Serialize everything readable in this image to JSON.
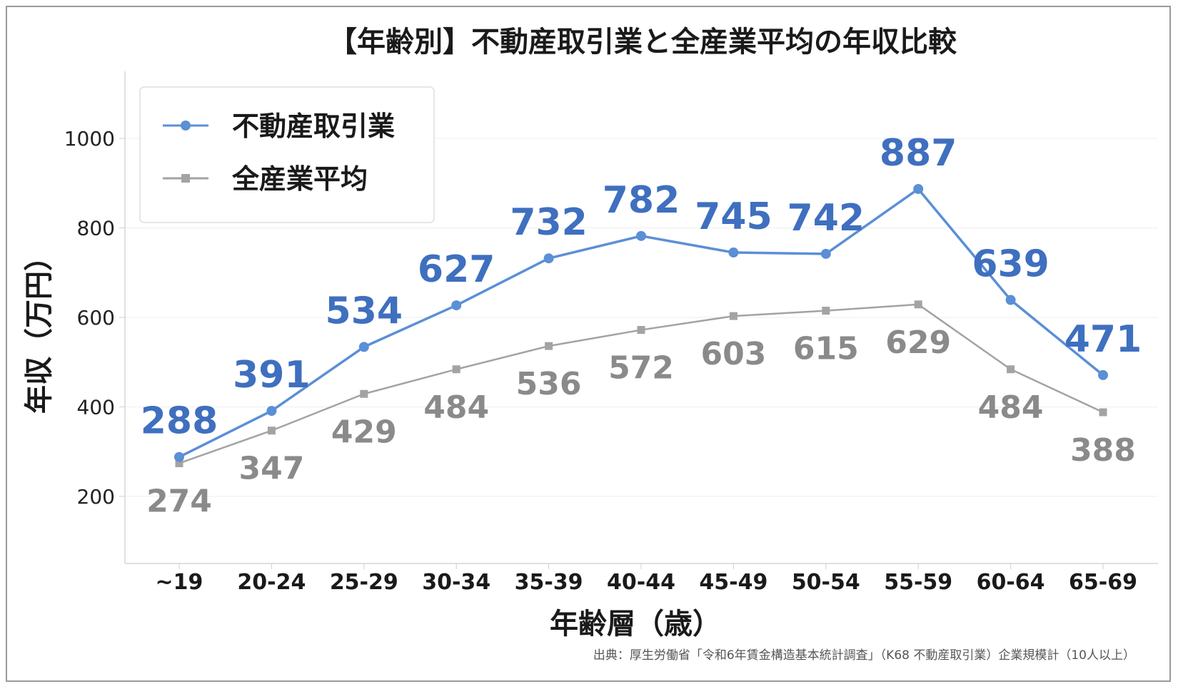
{
  "chart_data": {
    "type": "line",
    "title": "【年齢別】不動産取引業と全産業平均の年収比較",
    "xlabel": "年齢層（歳）",
    "ylabel": "年収（万円）",
    "categories": [
      "~19",
      "20-24",
      "25-29",
      "30-34",
      "35-39",
      "40-44",
      "45-49",
      "50-54",
      "55-59",
      "60-64",
      "65-69"
    ],
    "yticks": [
      200,
      400,
      600,
      800,
      1000
    ],
    "ylim": [
      50,
      1150
    ],
    "grid": true,
    "legend_position": "top-left",
    "series": [
      {
        "name": "不動産取引業",
        "values": [
          288,
          391,
          534,
          627,
          732,
          782,
          745,
          742,
          887,
          639,
          471
        ],
        "color": "#5b8fd6",
        "label_color": "#3f6fbf",
        "marker": "circle"
      },
      {
        "name": "全産業平均",
        "values": [
          274,
          347,
          429,
          484,
          536,
          572,
          603,
          615,
          629,
          484,
          388
        ],
        "color": "#a3a3a3",
        "label_color": "#8a8a8a",
        "marker": "square"
      }
    ],
    "source": "出典：厚生労働省「令和6年賃金構造基本統計調査」（K68 不動産取引業）企業規模計（10人以上）"
  }
}
